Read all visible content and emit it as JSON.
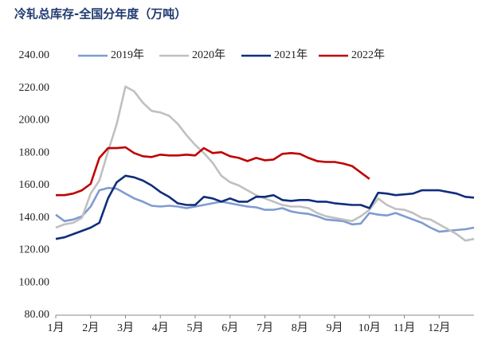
{
  "chart_data": {
    "type": "line",
    "title": "冷轧总库存-全国分年度（万吨）",
    "categories": [
      "1月",
      null,
      null,
      null,
      "2月",
      null,
      null,
      null,
      "3月",
      null,
      null,
      null,
      "4月",
      null,
      null,
      null,
      "5月",
      null,
      null,
      null,
      "6月",
      null,
      null,
      null,
      "7月",
      null,
      null,
      null,
      "8月",
      null,
      null,
      null,
      "9月",
      null,
      null,
      null,
      "10月",
      null,
      null,
      null,
      "11月",
      null,
      null,
      null,
      "12月",
      null,
      null,
      null,
      null
    ],
    "ylim": [
      80,
      240
    ],
    "yticks": [
      {
        "value": 80,
        "label": "80.00"
      },
      {
        "value": 100,
        "label": "100.00"
      },
      {
        "value": 120,
        "label": "120.00"
      },
      {
        "value": 140,
        "label": "140.00"
      },
      {
        "value": 160,
        "label": "160.00"
      },
      {
        "value": 180,
        "label": "180.00"
      },
      {
        "value": 200,
        "label": "200.00"
      },
      {
        "value": 220,
        "label": "220.00"
      },
      {
        "value": 240,
        "label": "240.00"
      }
    ],
    "grid": false,
    "legend": "top",
    "series": [
      {
        "name": "2019年",
        "color": "#7f9bd1",
        "values": [
          142,
          138,
          139,
          141,
          147,
          157,
          158.5,
          158,
          155,
          152,
          150,
          147.5,
          147,
          147.5,
          147,
          146,
          147,
          148,
          149,
          150,
          149,
          148,
          147,
          146.5,
          145,
          145,
          146,
          144,
          143,
          142.5,
          141,
          139,
          138.5,
          138,
          136,
          136.5,
          143,
          142,
          141.5,
          143,
          141,
          139,
          137,
          134,
          131.5,
          132,
          132.5,
          133,
          134
        ]
      },
      {
        "name": "2020年",
        "color": "#c0c0c0",
        "values": [
          134,
          136,
          137,
          140,
          155,
          163,
          181,
          198,
          221,
          218,
          211,
          206,
          205,
          203,
          198,
          191,
          185,
          180,
          174,
          166,
          162,
          160,
          157,
          154,
          152,
          150,
          148,
          147,
          147,
          146,
          143,
          141,
          140,
          139,
          138,
          141,
          145,
          152,
          148,
          145.5,
          145,
          143,
          140,
          139,
          136,
          133,
          130,
          126,
          127
        ]
      },
      {
        "name": "2021年",
        "color": "#0f2f7a",
        "values": [
          127,
          128,
          130,
          132,
          134,
          137,
          152,
          162,
          166,
          165,
          163,
          160,
          156,
          153,
          149,
          148,
          148,
          153,
          152,
          150,
          152,
          150,
          150,
          153,
          153,
          154,
          151,
          150.5,
          151,
          151,
          150,
          150,
          149,
          148.5,
          148,
          148,
          146,
          155.5,
          155,
          154,
          154.5,
          155,
          157,
          157,
          157,
          156,
          155,
          153,
          152.5
        ]
      },
      {
        "name": "2022年",
        "color": "#c00000",
        "values": [
          154,
          154,
          155,
          157,
          161,
          177,
          183,
          183,
          183.5,
          180,
          178,
          177.5,
          179,
          178.5,
          178.5,
          179,
          178.5,
          183,
          180,
          180.5,
          178,
          177,
          175,
          177,
          175.5,
          176,
          179.5,
          180,
          179.5,
          177,
          175,
          174.5,
          174.5,
          173.5,
          172,
          168,
          164,
          null,
          null,
          null,
          null,
          null,
          null,
          null,
          null,
          null,
          null,
          null,
          null
        ]
      }
    ]
  }
}
